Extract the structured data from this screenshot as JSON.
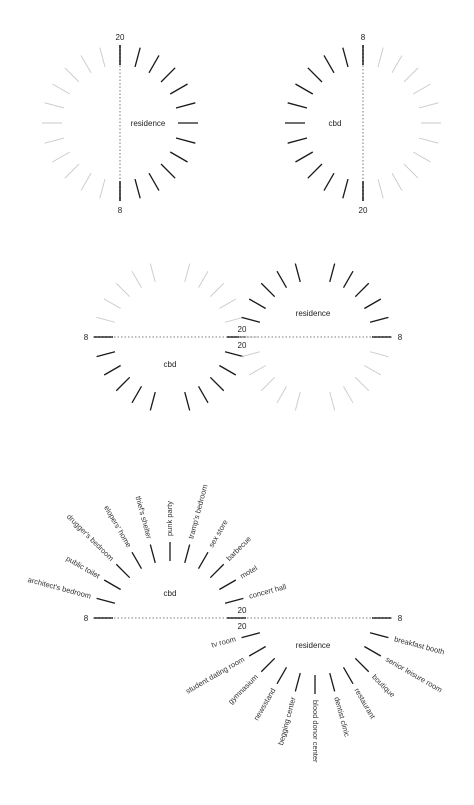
{
  "diagram1": {
    "left": {
      "top_number": "20",
      "bottom_number": "8",
      "zone_label": "residence"
    },
    "right": {
      "top_number": "8",
      "bottom_number": "20",
      "zone_label": "cbd"
    }
  },
  "diagram2": {
    "left_number": "8",
    "right_number": "8",
    "center_top": "20",
    "center_bottom": "20",
    "cbd_label": "cbd",
    "residence_label": "residence"
  },
  "diagram3": {
    "left_number": "8",
    "right_number": "8",
    "center_top": "20",
    "center_bottom": "20",
    "cbd_label": "cbd",
    "residence_label": "residence",
    "cbd_rooms": [
      "architect's bedroom",
      "public toilet",
      "drugger's bedroom",
      "elopers' home",
      "thief's shelter",
      "punk party",
      "tramp's bedroom",
      "sex store",
      "barbecue",
      "motel",
      "concert hall"
    ],
    "residence_rooms": [
      "tv room",
      "student dating room",
      "gymnasium",
      "newsstand",
      "begging center",
      "blood donor center",
      "dentist clinic",
      "restaurant",
      "boutique",
      "senior leisure room",
      "breakfast booth"
    ]
  }
}
